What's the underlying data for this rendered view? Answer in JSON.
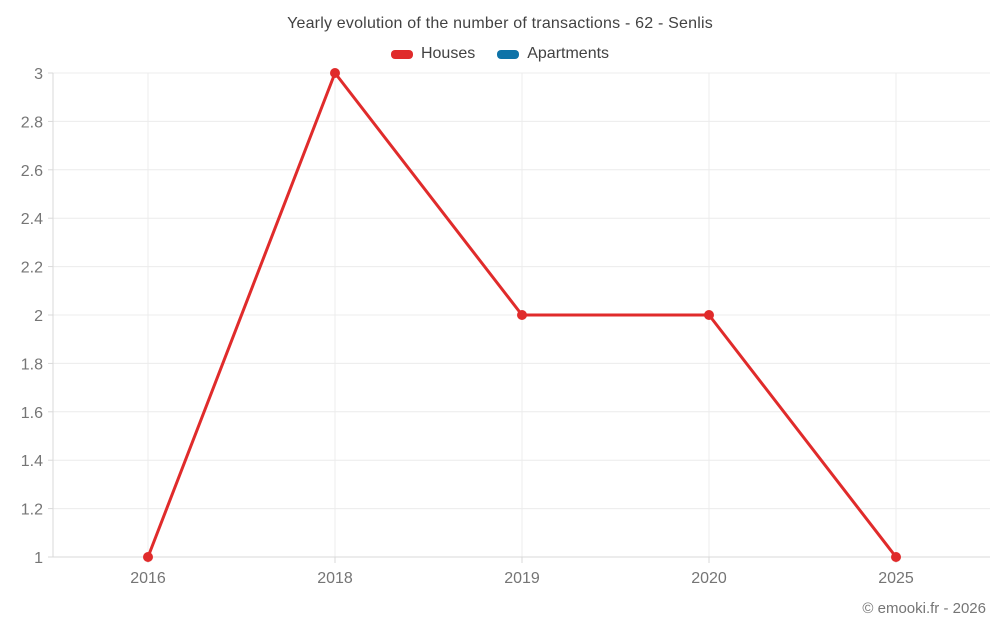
{
  "chart_data": {
    "type": "line",
    "title": "Yearly evolution of the number of transactions - 62 - Senlis",
    "categories": [
      "2016",
      "2018",
      "2019",
      "2020",
      "2025"
    ],
    "series": [
      {
        "name": "Houses",
        "color": "#e02b2b",
        "values": [
          1,
          3,
          2,
          2,
          1
        ]
      },
      {
        "name": "Apartments",
        "color": "#0e73a8",
        "values": []
      }
    ],
    "ylim": [
      1,
      3
    ],
    "yticks": [
      3,
      2.8,
      2.6,
      2.4,
      2.2,
      2,
      1.8,
      1.6,
      1.4,
      1.2,
      1
    ],
    "grid": true,
    "legend_position": "top",
    "xlabel": "",
    "ylabel": ""
  },
  "colors": {
    "grid_line": "#ececec",
    "axis_line": "#d9d9d9",
    "tick_mark": "#d9d9d9",
    "tick_label": "#757575"
  },
  "footer": {
    "copyright": "© emooki.fr - 2026"
  }
}
